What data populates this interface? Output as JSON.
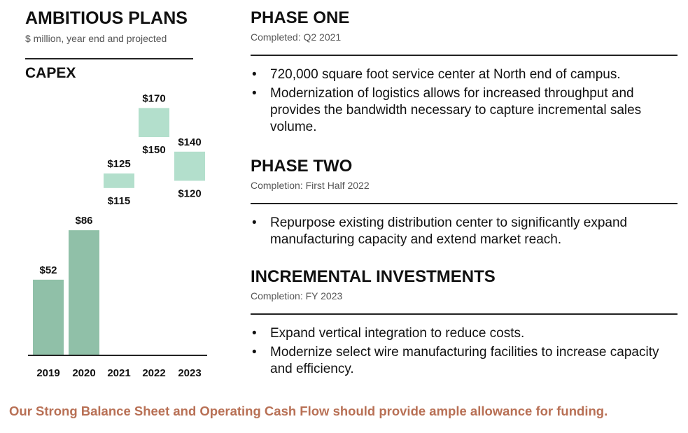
{
  "left": {
    "title": "AMBITIOUS PLANS",
    "subtitle": "$ million, year end and projected",
    "chart_label": "CAPEX"
  },
  "chart_data": {
    "type": "bar",
    "title": "CAPEX",
    "categories": [
      "2019",
      "2020",
      "2021",
      "2022",
      "2023"
    ],
    "series": [
      {
        "kind": "actual",
        "values": [
          52,
          86,
          null,
          null,
          null
        ],
        "labels": [
          "$52",
          "$86",
          "",
          "",
          ""
        ]
      },
      {
        "kind": "projected-range",
        "low": [
          null,
          null,
          115,
          150,
          120
        ],
        "high": [
          null,
          null,
          125,
          170,
          140
        ],
        "low_labels": [
          "",
          "",
          "$115",
          "$150",
          "$120"
        ],
        "high_labels": [
          "",
          "",
          "$125",
          "$170",
          "$140"
        ]
      }
    ],
    "ylim": [
      0,
      180
    ],
    "grid": false,
    "colors": {
      "actual": "#90c0a8",
      "projected": "#b3dfcc"
    }
  },
  "phases": [
    {
      "title": "PHASE ONE",
      "subtitle": "Completed: Q2 2021",
      "bullets": [
        "720,000 square foot service center at North end of campus.",
        "Modernization of logistics allows for increased throughput and provides the bandwidth necessary to capture incremental sales volume."
      ]
    },
    {
      "title": "PHASE TWO",
      "subtitle": "Completion: First Half 2022",
      "bullets": [
        "Repurpose existing distribution center to significantly expand manufacturing capacity and extend market reach."
      ]
    },
    {
      "title": "INCREMENTAL INVESTMENTS",
      "subtitle": "Completion: FY 2023",
      "bullets": [
        "Expand vertical integration to reduce costs.",
        "Modernize select wire manufacturing facilities to increase capacity and efficiency."
      ]
    }
  ],
  "footer": "Our Strong Balance Sheet and Operating Cash Flow should provide ample allowance for funding.",
  "footer_color": "#b87055"
}
